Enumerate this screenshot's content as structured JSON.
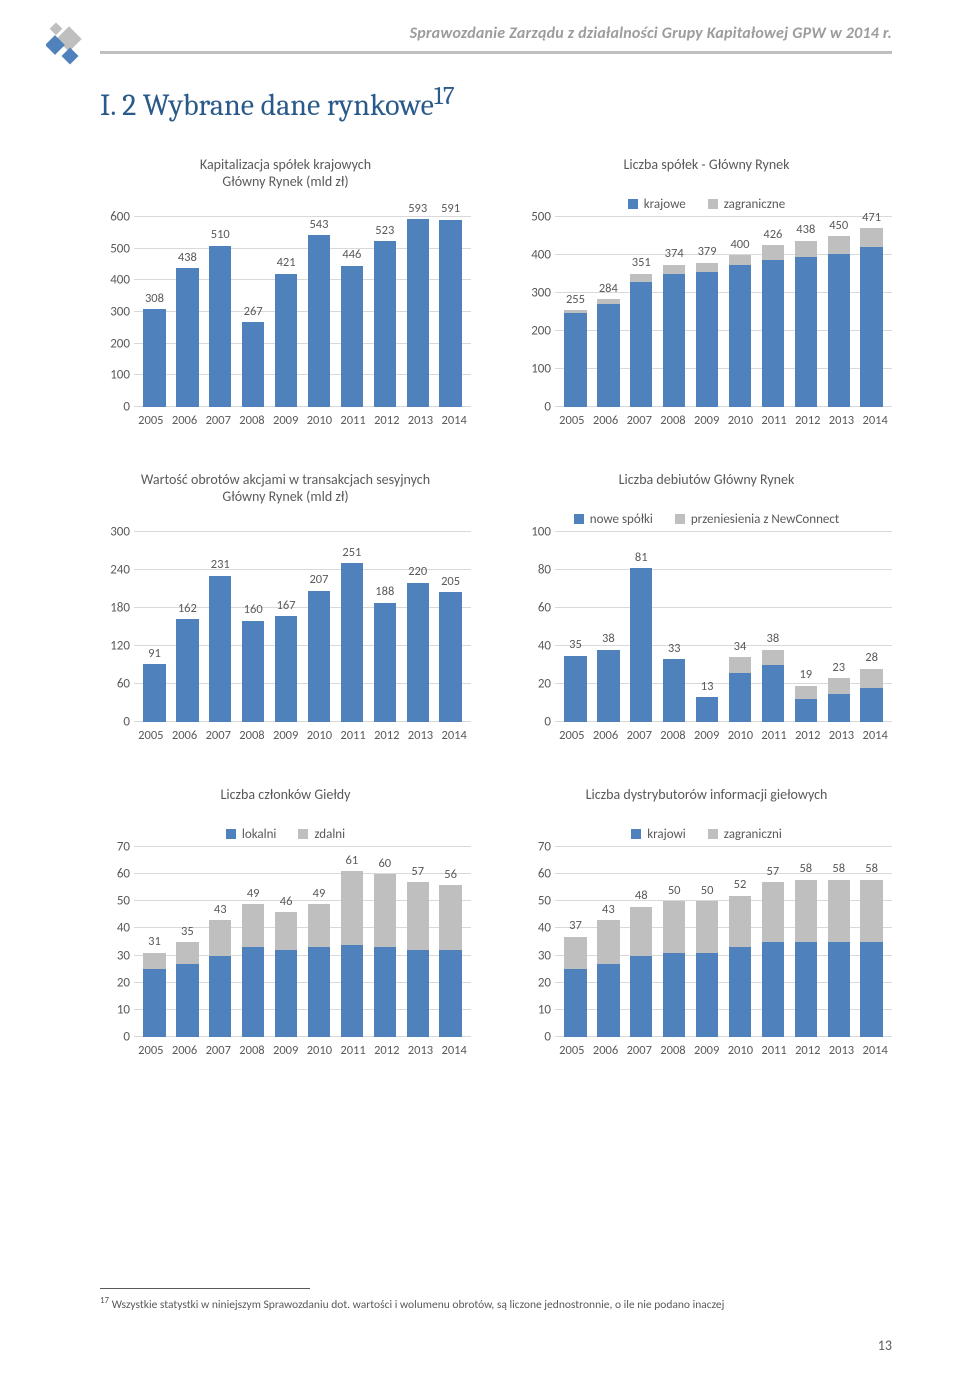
{
  "header": {
    "running_title": "Sprawozdanie Zarządu z działalności Grupy Kapitałowej GPW w 2014 r.",
    "section_heading": "I. 2    Wybrane dane rynkowe",
    "section_sup": "17"
  },
  "footer": {
    "footnote_num": "17",
    "footnote_text": "Wszystkie statystki w niniejszym Sprawozdaniu dot. wartości i wolumenu obrotów, są liczone jednostronnie, o ile nie podano inaczej",
    "page_number": "13"
  },
  "colors": {
    "primary_bar": "#4f81bd",
    "secondary_bar": "#bfbfbf",
    "gridline": "#d9d9d9",
    "text": "#595959",
    "heading": "#2a5a8a"
  },
  "x_categories": [
    "2005",
    "2006",
    "2007",
    "2008",
    "2009",
    "2010",
    "2011",
    "2012",
    "2013",
    "2014"
  ],
  "charts": {
    "cap": {
      "title_line1": "Kapitalizacja spółek krajowych",
      "title_line2": "Główny Rynek (mld zł)",
      "ymax": 600,
      "ytick": 100,
      "values": [
        308,
        438,
        510,
        267,
        421,
        543,
        446,
        523,
        593,
        591
      ]
    },
    "companies": {
      "title": "Liczba spółek - Główny Rynek",
      "legend": [
        "krajowe",
        "zagraniczne"
      ],
      "ymax": 500,
      "ytick": 100,
      "totals": [
        255,
        284,
        351,
        374,
        379,
        400,
        426,
        438,
        450,
        471
      ],
      "primary": [
        248,
        272,
        328,
        349,
        354,
        373,
        387,
        395,
        403,
        420
      ],
      "secondary": [
        7,
        12,
        23,
        25,
        25,
        27,
        39,
        43,
        47,
        51
      ]
    },
    "turnover": {
      "title_line1": "Wartość obrotów akcjami w transakcjach sesyjnych",
      "title_line2": "Główny Rynek (mld zł)",
      "ymax": 300,
      "ytick": 60,
      "values": [
        91,
        162,
        231,
        160,
        167,
        207,
        251,
        188,
        220,
        205
      ]
    },
    "ipos": {
      "title": "Liczba debiutów Główny Rynek",
      "legend": [
        "nowe spółki",
        "przeniesienia z NewConnect"
      ],
      "ymax": 100,
      "ytick": 20,
      "totals": [
        35,
        38,
        81,
        33,
        13,
        34,
        38,
        19,
        23,
        28
      ],
      "primary": [
        35,
        38,
        81,
        33,
        13,
        26,
        30,
        12,
        15,
        18
      ],
      "secondary": [
        0,
        0,
        0,
        0,
        0,
        8,
        8,
        7,
        8,
        10
      ]
    },
    "members": {
      "title": "Liczba członków Giełdy",
      "legend": [
        "lokalni",
        "zdalni"
      ],
      "ymax": 70,
      "ytick": 10,
      "totals": [
        31,
        35,
        43,
        49,
        46,
        49,
        61,
        60,
        57,
        56
      ],
      "primary": [
        25,
        27,
        30,
        33,
        32,
        33,
        34,
        33,
        32,
        32
      ],
      "secondary": [
        6,
        8,
        13,
        16,
        14,
        16,
        27,
        27,
        25,
        24
      ]
    },
    "distributors": {
      "title": "Liczba dystrybutorów informacji giełowych",
      "legend": [
        "krajowi",
        "zagraniczni"
      ],
      "ymax": 70,
      "ytick": 10,
      "totals": [
        37,
        43,
        48,
        50,
        50,
        52,
        57,
        58,
        58,
        58
      ],
      "primary": [
        25,
        27,
        30,
        31,
        31,
        33,
        35,
        35,
        35,
        35
      ],
      "secondary": [
        12,
        16,
        18,
        19,
        19,
        19,
        22,
        23,
        23,
        23
      ]
    }
  }
}
